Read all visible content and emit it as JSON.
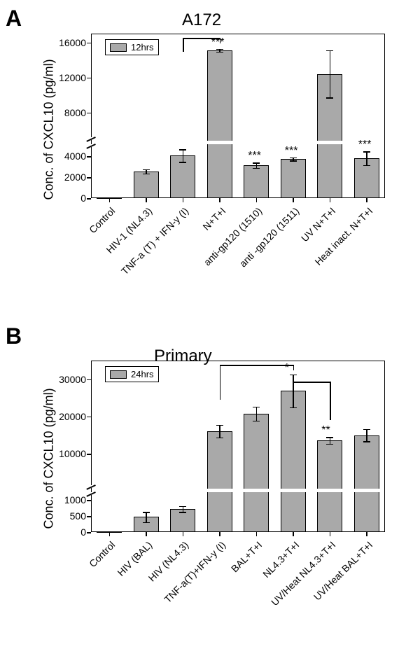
{
  "panelA": {
    "label": "A",
    "title": "A172",
    "legend_text": "12hrs",
    "y_axis_label": "Conc. of CXCL10 (pg/ml)",
    "bar_color": "#a9a9a9",
    "background": "#ffffff",
    "fontsize_title": 24,
    "fontsize_label": 18,
    "fontsize_tick": 14,
    "lower": {
      "ymin": 0,
      "ymax": 5000,
      "ticks": [
        0,
        2000,
        4000
      ]
    },
    "upper": {
      "ymin": 5000,
      "ymax": 17000,
      "ticks": [
        8000,
        12000,
        16000
      ]
    },
    "categories": [
      {
        "label": "Control",
        "value": 20,
        "err": 0,
        "sig": ""
      },
      {
        "label": "HIV-1 (NL4.3)",
        "value": 2550,
        "err": 200,
        "sig": ""
      },
      {
        "label": "TNF-a (T) + IFN-y (I)",
        "value": 4050,
        "err": 600,
        "sig": ""
      },
      {
        "label": "N+T+I",
        "value": 15100,
        "err": 150,
        "sig": "***"
      },
      {
        "label": "anti-gp120 (1510)",
        "value": 3150,
        "err": 250,
        "sig": "***"
      },
      {
        "label": "anti -gp120 (1511)",
        "value": 3750,
        "err": 150,
        "sig": "***"
      },
      {
        "label": "UV N+T+I",
        "value": 12400,
        "err": 2700,
        "sig": ""
      },
      {
        "label": "Heat inact. N+T+I",
        "value": 3800,
        "err": 650,
        "sig": "***"
      }
    ]
  },
  "panelB": {
    "label": "B",
    "title": "Primary",
    "legend_text": "24hrs",
    "y_axis_label": "Conc. of CXCL10 (pg/ml)",
    "bar_color": "#a9a9a9",
    "background": "#ffffff",
    "fontsize_title": 24,
    "fontsize_label": 18,
    "fontsize_tick": 14,
    "lower": {
      "ymin": 0,
      "ymax": 1200,
      "ticks": [
        0,
        500,
        1000
      ]
    },
    "upper": {
      "ymin": 1200,
      "ymax": 35000,
      "ticks": [
        10000,
        20000,
        30000
      ]
    },
    "categories": [
      {
        "label": "Control",
        "value": 20,
        "err": 0,
        "sig": ""
      },
      {
        "label": "HIV (BAL)",
        "value": 470,
        "err": 160,
        "sig": ""
      },
      {
        "label": "HIV (NL4.3)",
        "value": 720,
        "err": 90,
        "sig": ""
      },
      {
        "label": "TNF-a(T)+IFN-y (I)",
        "value": 16100,
        "err": 1700,
        "sig": ""
      },
      {
        "label": "BAL+T+I",
        "value": 20800,
        "err": 1900,
        "sig": ""
      },
      {
        "label": "NL4.3+T+I",
        "value": 26900,
        "err": 4400,
        "sig": "*"
      },
      {
        "label": "UV/Heat NL4.3+T+I",
        "value": 13600,
        "err": 900,
        "sig": "**"
      },
      {
        "label": "UV/Heat BAL+T+I",
        "value": 15000,
        "err": 1600,
        "sig": ""
      }
    ]
  }
}
